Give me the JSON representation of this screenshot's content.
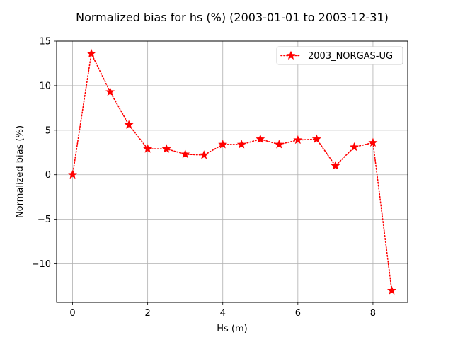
{
  "chart_data": {
    "type": "line",
    "title": "Normalized bias for hs (%) (2003-01-01 to 2003-12-31)",
    "xlabel": "Hs (m)",
    "ylabel": "Normalized bias (%)",
    "xlim": [
      -0.425,
      8.925
    ],
    "ylim": [
      -14.33,
      15
    ],
    "xticks": [
      0,
      2,
      4,
      6,
      8
    ],
    "yticks": [
      -10,
      -5,
      0,
      5,
      10,
      15
    ],
    "xtick_labels": [
      "0",
      "2",
      "4",
      "6",
      "8"
    ],
    "ytick_labels": [
      "−10",
      "−5",
      "0",
      "5",
      "10",
      "15"
    ],
    "grid": true,
    "legend_position": "upper right",
    "series": [
      {
        "name": "2003_NORGAS-UG",
        "color": "#ff0000",
        "line_style": "dotted",
        "marker": "star",
        "x": [
          0,
          0.5,
          1.0,
          1.5,
          2.0,
          2.5,
          3.0,
          3.5,
          4.0,
          4.5,
          5.0,
          5.5,
          6.0,
          6.5,
          7.0,
          7.5,
          8.0,
          8.5
        ],
        "y": [
          0.0,
          13.6,
          9.3,
          5.6,
          2.9,
          2.9,
          2.3,
          2.2,
          3.4,
          3.4,
          4.0,
          3.4,
          3.9,
          4.0,
          1.0,
          3.1,
          3.6,
          -13.0
        ]
      }
    ]
  }
}
